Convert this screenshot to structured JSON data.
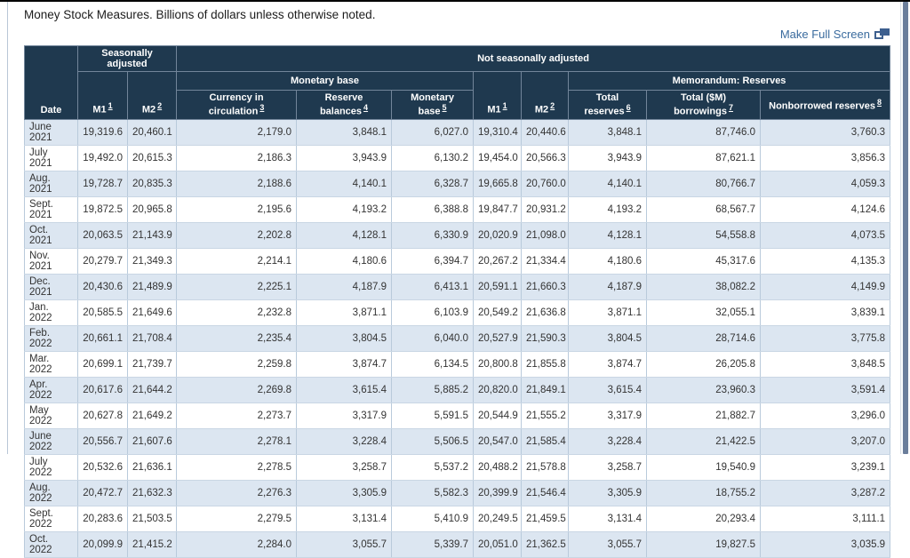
{
  "page": {
    "title": "Money Stock Measures. Billions of dollars unless otherwise noted.",
    "full_screen_label": "Make Full Screen"
  },
  "colors": {
    "header_bg": "#1f394f",
    "row_alt": "#dce6f1",
    "link_blue": "#3a6b9e",
    "scrollbar": "#6b7e9b",
    "cell_border": "#b9cadb"
  },
  "table": {
    "group_headers": {
      "seasonally_adjusted": "Seasonally adjusted",
      "not_seasonally_adjusted": "Not seasonally adjusted",
      "monetary_base": "Monetary base",
      "memorandum_reserves": "Memorandum: Reserves"
    },
    "columns": [
      {
        "label": "Date",
        "sup": ""
      },
      {
        "label": "M1",
        "sup": "1"
      },
      {
        "label": "M2",
        "sup": "2"
      },
      {
        "label": "Currency in circulation",
        "sup": "3"
      },
      {
        "label": "Reserve balances",
        "sup": "4"
      },
      {
        "label": "Monetary base",
        "sup": "5"
      },
      {
        "label": "M1",
        "sup": "1"
      },
      {
        "label": "M2",
        "sup": "2"
      },
      {
        "label": "Total reserves",
        "sup": "6"
      },
      {
        "label": "Total ($M) borrowings",
        "sup": "7"
      },
      {
        "label": "Nonborrowed reserves",
        "sup": "8"
      }
    ],
    "rows": [
      [
        "June 2021",
        "19,319.6",
        "20,460.1",
        "2,179.0",
        "3,848.1",
        "6,027.0",
        "19,310.4",
        "20,440.6",
        "3,848.1",
        "87,746.0",
        "3,760.3"
      ],
      [
        "July 2021",
        "19,492.0",
        "20,615.3",
        "2,186.3",
        "3,943.9",
        "6,130.2",
        "19,454.0",
        "20,566.3",
        "3,943.9",
        "87,621.1",
        "3,856.3"
      ],
      [
        "Aug. 2021",
        "19,728.7",
        "20,835.3",
        "2,188.6",
        "4,140.1",
        "6,328.7",
        "19,665.8",
        "20,760.0",
        "4,140.1",
        "80,766.7",
        "4,059.3"
      ],
      [
        "Sept. 2021",
        "19,872.5",
        "20,965.8",
        "2,195.6",
        "4,193.2",
        "6,388.8",
        "19,847.7",
        "20,931.2",
        "4,193.2",
        "68,567.7",
        "4,124.6"
      ],
      [
        "Oct. 2021",
        "20,063.5",
        "21,143.9",
        "2,202.8",
        "4,128.1",
        "6,330.9",
        "20,020.9",
        "21,098.0",
        "4,128.1",
        "54,558.8",
        "4,073.5"
      ],
      [
        "Nov. 2021",
        "20,279.7",
        "21,349.3",
        "2,214.1",
        "4,180.6",
        "6,394.7",
        "20,267.2",
        "21,334.4",
        "4,180.6",
        "45,317.6",
        "4,135.3"
      ],
      [
        "Dec. 2021",
        "20,430.6",
        "21,489.9",
        "2,225.1",
        "4,187.9",
        "6,413.1",
        "20,591.1",
        "21,660.3",
        "4,187.9",
        "38,082.2",
        "4,149.9"
      ],
      [
        "Jan. 2022",
        "20,585.5",
        "21,649.6",
        "2,232.8",
        "3,871.1",
        "6,103.9",
        "20,549.2",
        "21,636.8",
        "3,871.1",
        "32,055.1",
        "3,839.1"
      ],
      [
        "Feb. 2022",
        "20,661.1",
        "21,708.4",
        "2,235.4",
        "3,804.5",
        "6,040.0",
        "20,527.9",
        "21,590.3",
        "3,804.5",
        "28,714.6",
        "3,775.8"
      ],
      [
        "Mar. 2022",
        "20,699.1",
        "21,739.7",
        "2,259.8",
        "3,874.7",
        "6,134.5",
        "20,800.8",
        "21,855.8",
        "3,874.7",
        "26,205.8",
        "3,848.5"
      ],
      [
        "Apr. 2022",
        "20,617.6",
        "21,644.2",
        "2,269.8",
        "3,615.4",
        "5,885.2",
        "20,820.0",
        "21,849.1",
        "3,615.4",
        "23,960.3",
        "3,591.4"
      ],
      [
        "May 2022",
        "20,627.8",
        "21,649.2",
        "2,273.7",
        "3,317.9",
        "5,591.5",
        "20,544.9",
        "21,555.2",
        "3,317.9",
        "21,882.7",
        "3,296.0"
      ],
      [
        "June 2022",
        "20,556.7",
        "21,607.6",
        "2,278.1",
        "3,228.4",
        "5,506.5",
        "20,547.0",
        "21,585.4",
        "3,228.4",
        "21,422.5",
        "3,207.0"
      ],
      [
        "July 2022",
        "20,532.6",
        "21,636.1",
        "2,278.5",
        "3,258.7",
        "5,537.2",
        "20,488.2",
        "21,578.8",
        "3,258.7",
        "19,540.9",
        "3,239.1"
      ],
      [
        "Aug. 2022",
        "20,472.7",
        "21,632.3",
        "2,276.3",
        "3,305.9",
        "5,582.3",
        "20,399.9",
        "21,546.4",
        "3,305.9",
        "18,755.2",
        "3,287.2"
      ],
      [
        "Sept. 2022",
        "20,283.6",
        "21,503.5",
        "2,279.5",
        "3,131.4",
        "5,410.9",
        "20,249.5",
        "21,459.5",
        "3,131.4",
        "20,293.4",
        "3,111.1"
      ],
      [
        "Oct. 2022",
        "20,099.9",
        "21,415.2",
        "2,284.0",
        "3,055.7",
        "5,339.7",
        "20,051.0",
        "21,362.5",
        "3,055.7",
        "19,827.5",
        "3,035.9"
      ]
    ]
  }
}
